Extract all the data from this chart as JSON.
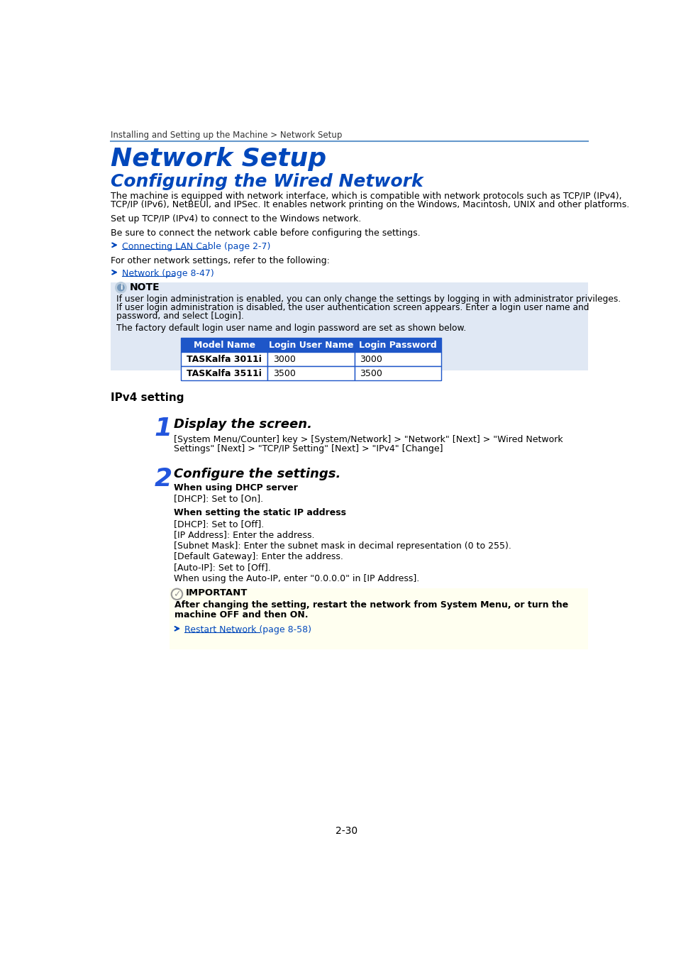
{
  "breadcrumb": "Installing and Setting up the Machine > Network Setup",
  "title": "Network Setup",
  "subtitle": "Configuring the Wired Network",
  "para1a": "The machine is equipped with network interface, which is compatible with network protocols such as TCP/IP (IPv4),",
  "para1b": "TCP/IP (IPv6), NetBEUI, and IPSec. It enables network printing on the Windows, Macintosh, UNIX and other platforms.",
  "para2": "Set up TCP/IP (IPv4) to connect to the Windows network.",
  "para3": "Be sure to connect the network cable before configuring the settings.",
  "link1": "Connecting LAN Cable (page 2-7)",
  "para4": "For other network settings, refer to the following:",
  "link2": "Network (page 8-47)",
  "note_label": "NOTE",
  "note_text1a": "If user login administration is enabled, you can only change the settings by logging in with administrator privileges.",
  "note_text1b": "If user login administration is disabled, the user authentication screen appears. Enter a login user name and",
  "note_text1c": "password, and select [Login].",
  "note_text2": "The factory default login user name and login password are set as shown below.",
  "table_headers": [
    "Model Name",
    "Login User Name",
    "Login Password"
  ],
  "table_rows": [
    [
      "TASKalfa 3011i",
      "3000",
      "3000"
    ],
    [
      "TASKalfa 3511i",
      "3500",
      "3500"
    ]
  ],
  "ipv4_heading": "IPv4 setting",
  "step1_num": "1",
  "step1_title": "Display the screen.",
  "step1_body1": "[System Menu/Counter] key > [System/Network] > \"Network\" [Next] > \"Wired Network",
  "step1_body2": "Settings\" [Next] > \"TCP/IP Setting\" [Next] > \"IPv4\" [Change]",
  "step2_num": "2",
  "step2_title": "Configure the settings.",
  "dhcp_heading": "When using DHCP server",
  "dhcp_line": "[DHCP]: Set to [On].",
  "static_heading": "When setting the static IP address",
  "static_line1": "[DHCP]: Set to [Off].",
  "static_line2": "[IP Address]: Enter the address.",
  "static_line3": "[Subnet Mask]: Enter the subnet mask in decimal representation (0 to 255).",
  "static_line4": "[Default Gateway]: Enter the address.",
  "static_line5": "[Auto-IP]: Set to [Off].",
  "static_line6": "When using the Auto-IP, enter \"0.0.0.0\" in [IP Address].",
  "important_label": "IMPORTANT",
  "important_text1": "After changing the setting, restart the network from System Menu, or turn the",
  "important_text2": "machine OFF and then ON.",
  "important_link": "Restart Network (page 8-58)",
  "page_num": "2-30",
  "blue_color": "#0047BB",
  "link_color": "#0047BB",
  "header_bg": "#1E56C8",
  "note_bg": "#E0E8F4",
  "important_bg": "#FFFFF0",
  "table_border": "#1E56C8",
  "step_num_color": "#2255DD",
  "line_color": "#6699CC"
}
